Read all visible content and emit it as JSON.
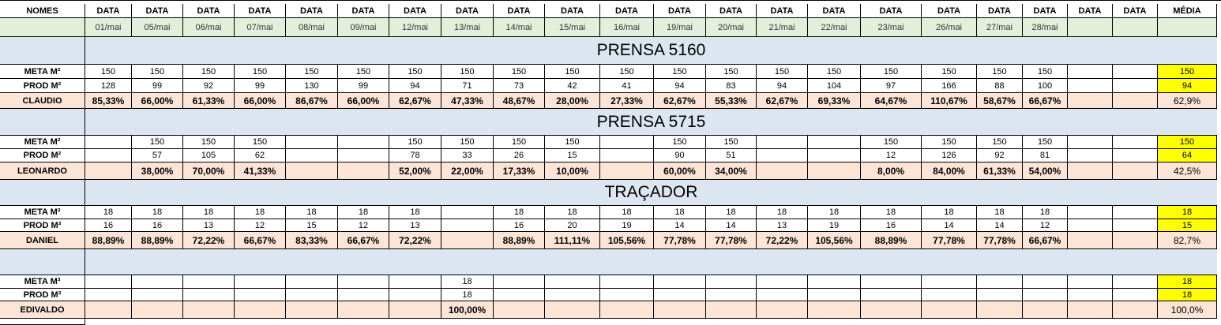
{
  "header": {
    "names_label": "NOMES",
    "data_label": "DATA",
    "avg_label": "MÉDIA",
    "dates": [
      "01/mai",
      "05/mai",
      "06/mai",
      "07/mai",
      "08/mai",
      "09/mai",
      "12/mai",
      "13/mai",
      "14/mai",
      "15/mai",
      "16/mai",
      "19/mai",
      "20/mai",
      "21/mai",
      "22/mai",
      "23/mai",
      "26/mai",
      "27/mai",
      "28/mai",
      "",
      ""
    ]
  },
  "sections": [
    {
      "title": "PRENSA 5160",
      "meta_label": "META M²",
      "prod_label": "PROD M²",
      "person": "CLAUDIO",
      "meta": [
        "150",
        "150",
        "150",
        "150",
        "150",
        "150",
        "150",
        "150",
        "150",
        "150",
        "150",
        "150",
        "150",
        "150",
        "150",
        "150",
        "150",
        "150",
        "150",
        "",
        ""
      ],
      "prod": [
        "128",
        "99",
        "92",
        "99",
        "130",
        "99",
        "94",
        "71",
        "73",
        "42",
        "41",
        "94",
        "83",
        "94",
        "104",
        "97",
        "166",
        "88",
        "100",
        "",
        ""
      ],
      "pct": [
        "85,33%",
        "66,00%",
        "61,33%",
        "66,00%",
        "86,67%",
        "66,00%",
        "62,67%",
        "47,33%",
        "48,67%",
        "28,00%",
        "27,33%",
        "62,67%",
        "55,33%",
        "62,67%",
        "69,33%",
        "64,67%",
        "110,67%",
        "58,67%",
        "66,67%",
        "",
        ""
      ],
      "avg_meta": "150",
      "avg_prod": "94",
      "avg_pct": "62,9%"
    },
    {
      "title": "PRENSA 5715",
      "meta_label": "META M²",
      "prod_label": "PROD M²",
      "person": "LEONARDO",
      "meta": [
        "",
        "150",
        "150",
        "150",
        "",
        "",
        "150",
        "150",
        "150",
        "150",
        "",
        "150",
        "150",
        "",
        "",
        "150",
        "150",
        "150",
        "150",
        "",
        ""
      ],
      "prod": [
        "",
        "57",
        "105",
        "62",
        "",
        "",
        "78",
        "33",
        "26",
        "15",
        "",
        "90",
        "51",
        "",
        "",
        "12",
        "126",
        "92",
        "81",
        "",
        ""
      ],
      "pct": [
        "",
        "38,00%",
        "70,00%",
        "41,33%",
        "",
        "",
        "52,00%",
        "22,00%",
        "17,33%",
        "10,00%",
        "",
        "60,00%",
        "34,00%",
        "",
        "",
        "8,00%",
        "84,00%",
        "61,33%",
        "54,00%",
        "",
        ""
      ],
      "avg_meta": "150",
      "avg_prod": "64",
      "avg_pct": "42,5%"
    },
    {
      "title": "TRAÇADOR",
      "meta_label": "META M³",
      "prod_label": "PROD M³",
      "person": "DANIEL",
      "meta": [
        "18",
        "18",
        "18",
        "18",
        "18",
        "18",
        "18",
        "",
        "18",
        "18",
        "18",
        "18",
        "18",
        "18",
        "18",
        "18",
        "18",
        "18",
        "18",
        "",
        ""
      ],
      "prod": [
        "16",
        "16",
        "13",
        "12",
        "15",
        "12",
        "13",
        "",
        "16",
        "20",
        "19",
        "14",
        "14",
        "13",
        "19",
        "16",
        "14",
        "14",
        "12",
        "",
        ""
      ],
      "pct": [
        "88,89%",
        "88,89%",
        "72,22%",
        "66,67%",
        "83,33%",
        "66,67%",
        "72,22%",
        "",
        "88,89%",
        "111,11%",
        "105,56%",
        "77,78%",
        "77,78%",
        "72,22%",
        "105,56%",
        "88,89%",
        "77,78%",
        "77,78%",
        "66,67%",
        "",
        ""
      ],
      "avg_meta": "18",
      "avg_prod": "15",
      "avg_pct": "82,7%"
    },
    {
      "title": "",
      "meta_label": "META M³",
      "prod_label": "PROD M³",
      "person": "EDIVALDO",
      "meta": [
        "",
        "",
        "",
        "",
        "",
        "",
        "",
        "18",
        "",
        "",
        "",
        "",
        "",
        "",
        "",
        "",
        "",
        "",
        "",
        "",
        ""
      ],
      "prod": [
        "",
        "",
        "",
        "",
        "",
        "",
        "",
        "18",
        "",
        "",
        "",
        "",
        "",
        "",
        "",
        "",
        "",
        "",
        "",
        "",
        ""
      ],
      "pct": [
        "",
        "",
        "",
        "",
        "",
        "",
        "",
        "100,00%",
        "",
        "",
        "",
        "",
        "",
        "",
        "",
        "",
        "",
        "",
        "",
        "",
        ""
      ],
      "avg_meta": "18",
      "avg_prod": "18",
      "avg_pct": "100,0%"
    }
  ]
}
